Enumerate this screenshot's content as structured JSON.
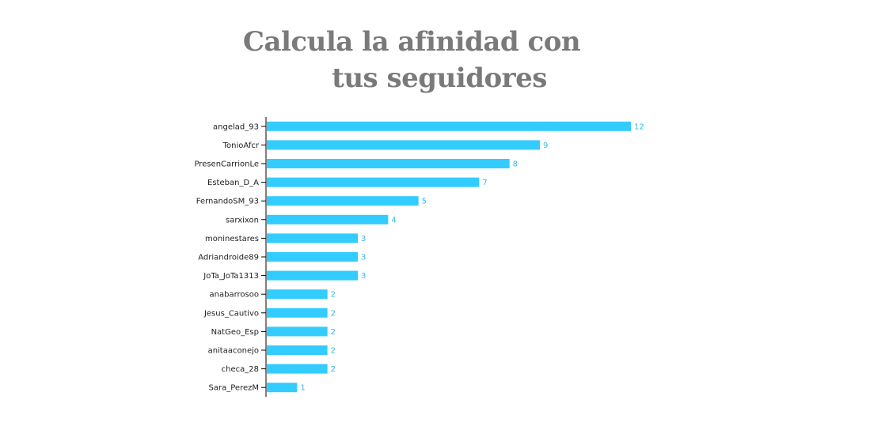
{
  "header": {
    "title_line1": "Calcula la afinidad con",
    "title_line2": "tus seguidores"
  },
  "colors": {
    "bar": "#33ccff",
    "value_label": "#2fb9e6",
    "title": "#7a7a7a",
    "axis": "#000000"
  },
  "chart_data": {
    "type": "bar",
    "orientation": "horizontal",
    "categories": [
      "angelad_93",
      "TonioAfcr",
      "PresenCarrionLe",
      "Esteban_D_A",
      "FernandoSM_93",
      "sarxixon",
      "moninestares",
      "Adriandroide89",
      "JoTa_JoTa1313",
      "anabarrosoo",
      "Jesus_Cautivo",
      "NatGeo_Esp",
      "anitaaconejo",
      "checa_28",
      "Sara_PerezM"
    ],
    "values": [
      12,
      9,
      8,
      7,
      5,
      4,
      3,
      3,
      3,
      2,
      2,
      2,
      2,
      2,
      1
    ],
    "xlim": [
      0,
      12
    ],
    "grid": false,
    "legend": "none",
    "data_labels": true
  }
}
